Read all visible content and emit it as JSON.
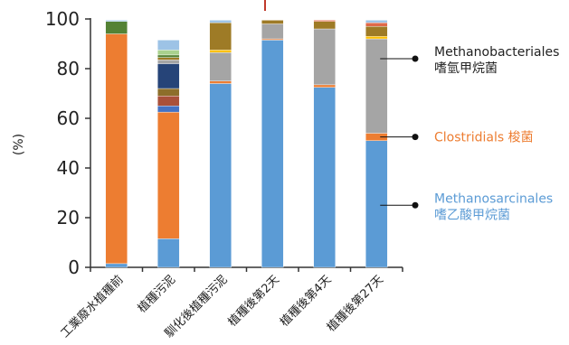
{
  "chart_data": {
    "type": "bar",
    "stacked": true,
    "ylabel": "(%)",
    "ylim": [
      0,
      100
    ],
    "yticks": [
      0,
      20,
      40,
      60,
      80,
      100
    ],
    "categories": [
      "工業廢水植種前",
      "植種污泥",
      "馴化後植種污泥",
      "植種後第2天",
      "植種後第4天",
      "植種後第27天"
    ],
    "series": [
      {
        "name": "Methanosarcinales 嗜乙酸甲烷菌",
        "color": "#5b9bd5",
        "values": [
          1.5,
          11.5,
          74,
          91.5,
          72.5,
          51
        ]
      },
      {
        "name": "Clostridials 梭菌",
        "color": "#ed7d31",
        "values": [
          92.5,
          51,
          1,
          0.5,
          1,
          3
        ]
      },
      {
        "color": "#4472c4",
        "values": [
          0,
          2.5,
          0,
          0,
          0,
          0
        ]
      },
      {
        "color": "#a9503a",
        "values": [
          0,
          4,
          0,
          0,
          0,
          0
        ]
      },
      {
        "color": "#8d6e2a",
        "values": [
          0,
          3,
          0,
          0,
          0,
          0
        ]
      },
      {
        "color": "#264478",
        "values": [
          0,
          10,
          0,
          0,
          0,
          0
        ]
      },
      {
        "name": "Methanobacteriales 嗜氫甲烷菌",
        "color": "#a5a5a5",
        "values": [
          0,
          1.5,
          11.5,
          6,
          22.5,
          38
        ]
      },
      {
        "color": "#ffc000",
        "values": [
          0,
          0,
          1,
          0,
          0,
          1
        ]
      },
      {
        "color": "#9e7b26",
        "values": [
          0,
          1,
          11,
          1.5,
          3,
          4
        ]
      },
      {
        "color": "#548235",
        "values": [
          5,
          1,
          0,
          0,
          0,
          0
        ]
      },
      {
        "color": "#e06a4a",
        "values": [
          0,
          0,
          0,
          0,
          0.5,
          1.5
        ]
      },
      {
        "color": "#a9d18e",
        "values": [
          0,
          2,
          0,
          0,
          0,
          0
        ]
      },
      {
        "color": "#9dc3e6",
        "values": [
          0.5,
          4,
          1,
          0,
          0,
          1
        ]
      }
    ],
    "annotations": [
      {
        "line1": "Methanobacteriales",
        "line2": "嗜氫甲烷菌",
        "color": "#222222",
        "y": 84
      },
      {
        "line1": "Clostridials 梭菌",
        "line2": "",
        "color": "#ed7d31",
        "y": 52.5
      },
      {
        "line1": "Methanosarcinales",
        "line2": "嗜乙酸甲烷菌",
        "color": "#5b9bd5",
        "y": 25
      }
    ],
    "grid": false
  }
}
